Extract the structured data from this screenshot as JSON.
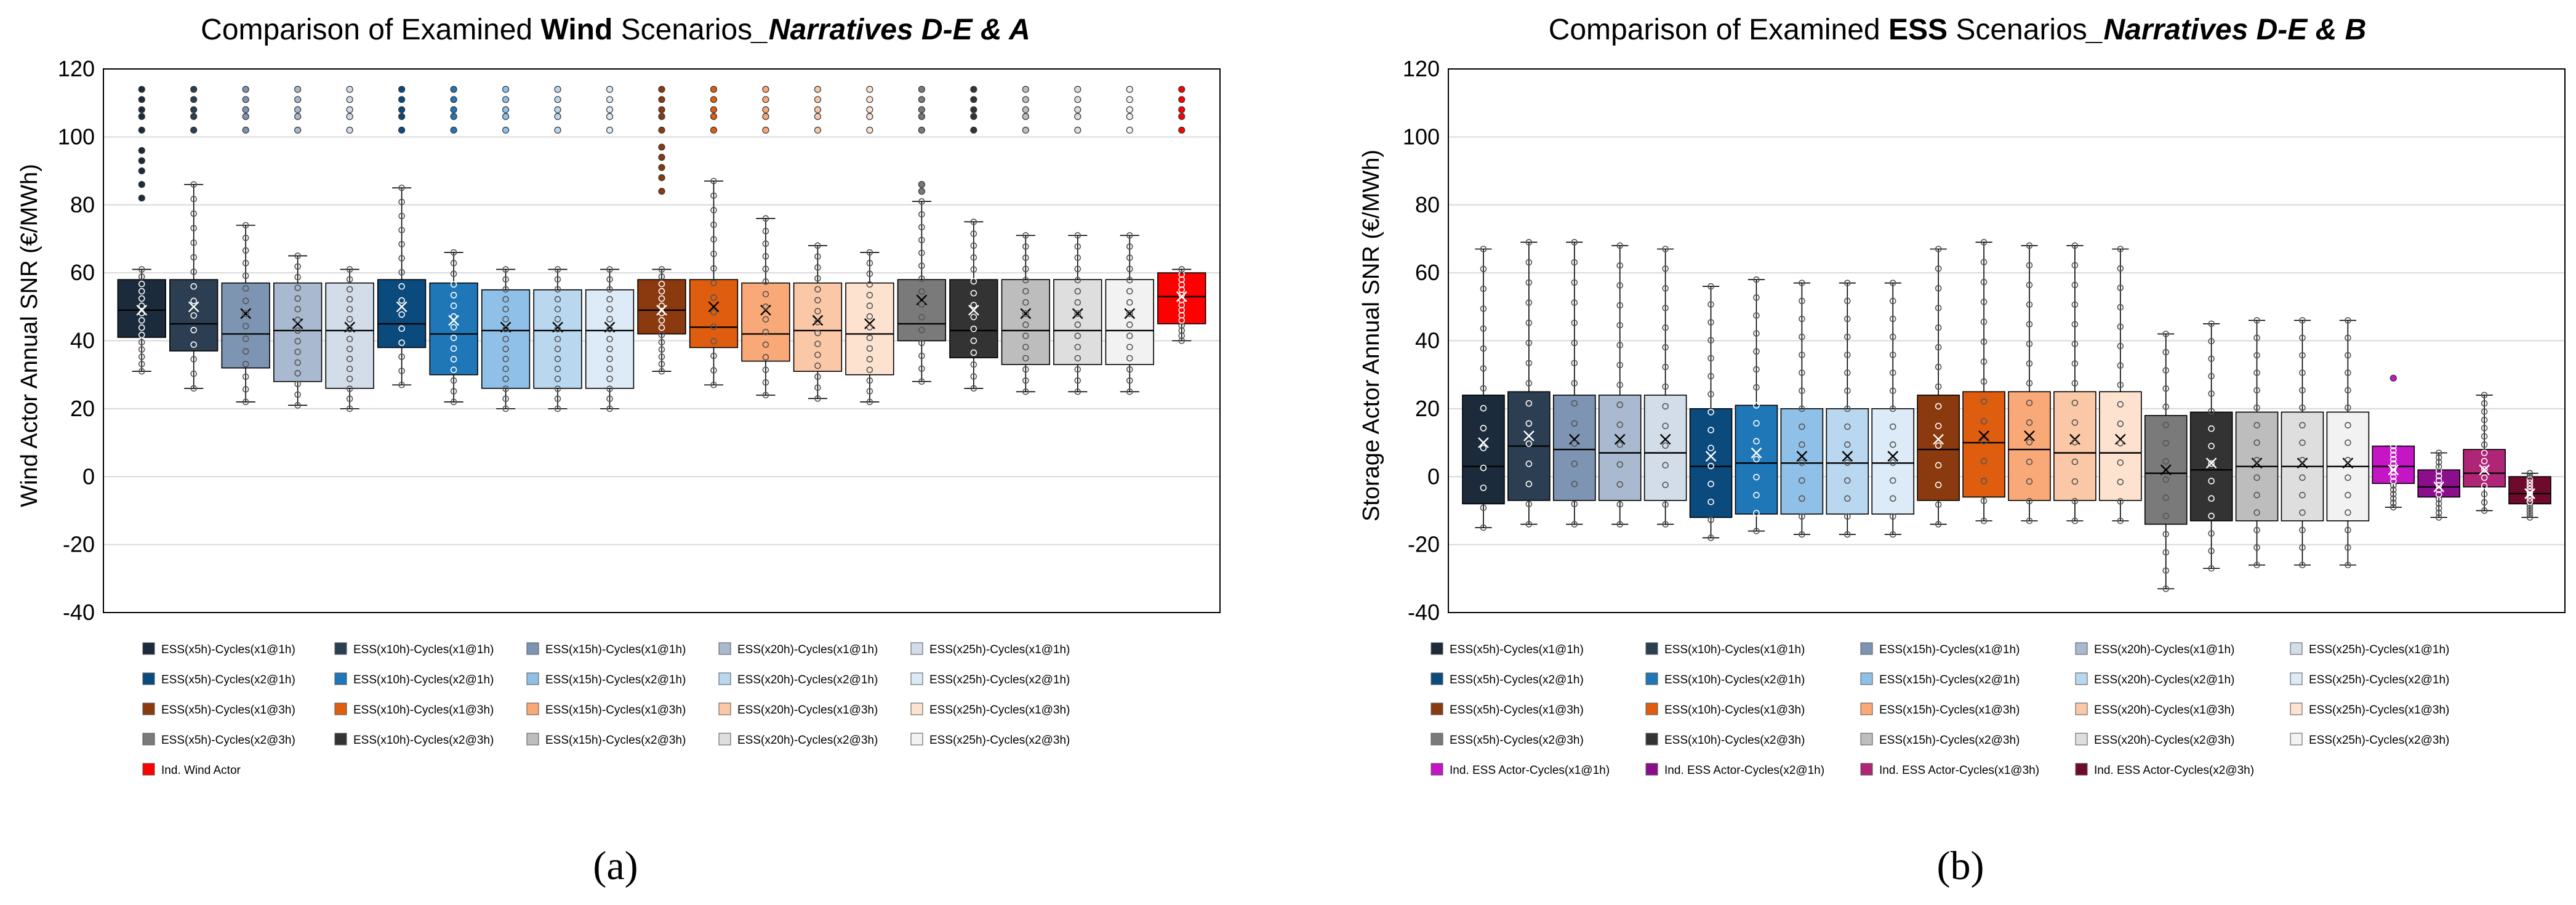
{
  "chart_data": [
    {
      "type": "box",
      "panel_label": "(a)",
      "title": {
        "prefix": "Comparison of Examined ",
        "bold": "Wind",
        "middle": " Scenarios",
        "italic_bold": "_Narratives D-E & A"
      },
      "ylabel": "Wind Actor Annual  SNR (€/MWh)",
      "xlabel": "",
      "ylim": [
        -40,
        120
      ],
      "yticks": [
        -40,
        -20,
        0,
        20,
        40,
        60,
        80,
        100,
        120
      ],
      "grid": true,
      "legend_columns": 5,
      "series": [
        {
          "name": "ESS(x5h)-Cycles(x1@1h)",
          "color": "#1c2b3b",
          "min": 31,
          "q1": 41,
          "median": 49,
          "q3": 58,
          "max": 61,
          "mean": 49,
          "outliers": [
            82,
            86,
            90,
            93,
            96,
            102,
            106,
            108,
            111,
            114
          ]
        },
        {
          "name": "ESS(x10h)-Cycles(x1@1h)",
          "color": "#2c3e52",
          "min": 26,
          "q1": 37,
          "median": 45,
          "q3": 58,
          "max": 86,
          "mean": 50,
          "outliers": [
            102,
            106,
            108,
            111,
            114
          ]
        },
        {
          "name": "ESS(x15h)-Cycles(x1@1h)",
          "color": "#7d95b3",
          "min": 22,
          "q1": 32,
          "median": 42,
          "q3": 57,
          "max": 74,
          "mean": 48,
          "outliers": [
            102,
            106,
            108,
            111,
            114
          ]
        },
        {
          "name": "ESS(x20h)-Cycles(x1@1h)",
          "color": "#a9b9cf",
          "min": 21,
          "q1": 28,
          "median": 43,
          "q3": 57,
          "max": 65,
          "mean": 45,
          "outliers": [
            102,
            106,
            108,
            111,
            114
          ]
        },
        {
          "name": "ESS(x25h)-Cycles(x1@1h)",
          "color": "#d3dde9",
          "min": 20,
          "q1": 26,
          "median": 43,
          "q3": 57,
          "max": 61,
          "mean": 44,
          "outliers": [
            102,
            106,
            108,
            111,
            114
          ]
        },
        {
          "name": "ESS(x5h)-Cycles(x2@1h)",
          "color": "#0b4a7d",
          "min": 27,
          "q1": 38,
          "median": 45,
          "q3": 58,
          "max": 85,
          "mean": 50,
          "outliers": [
            102,
            106,
            108,
            111,
            114
          ]
        },
        {
          "name": "ESS(x10h)-Cycles(x2@1h)",
          "color": "#1f77b8",
          "min": 22,
          "q1": 30,
          "median": 42,
          "q3": 57,
          "max": 66,
          "mean": 46,
          "outliers": [
            102,
            106,
            108,
            111,
            114
          ]
        },
        {
          "name": "ESS(x15h)-Cycles(x2@1h)",
          "color": "#8fc0e8",
          "min": 20,
          "q1": 26,
          "median": 43,
          "q3": 55,
          "max": 61,
          "mean": 44,
          "outliers": [
            102,
            106,
            108,
            111,
            114
          ]
        },
        {
          "name": "ESS(x20h)-Cycles(x2@1h)",
          "color": "#b9d8f0",
          "min": 20,
          "q1": 26,
          "median": 43,
          "q3": 55,
          "max": 61,
          "mean": 44,
          "outliers": [
            102,
            106,
            108,
            111,
            114
          ]
        },
        {
          "name": "ESS(x25h)-Cycles(x2@1h)",
          "color": "#dcebf7",
          "min": 20,
          "q1": 26,
          "median": 43,
          "q3": 55,
          "max": 61,
          "mean": 44,
          "outliers": [
            102,
            106,
            108,
            111,
            114
          ]
        },
        {
          "name": "ESS(x5h)-Cycles(x1@3h)",
          "color": "#8a3a0e",
          "min": 31,
          "q1": 42,
          "median": 49,
          "q3": 58,
          "max": 61,
          "mean": 49,
          "outliers": [
            84,
            88,
            91,
            94,
            97,
            102,
            106,
            108,
            111,
            114
          ]
        },
        {
          "name": "ESS(x10h)-Cycles(x1@3h)",
          "color": "#df5d0e",
          "min": 27,
          "q1": 38,
          "median": 44,
          "q3": 58,
          "max": 87,
          "mean": 50,
          "outliers": [
            102,
            106,
            108,
            111,
            114
          ]
        },
        {
          "name": "ESS(x15h)-Cycles(x1@3h)",
          "color": "#f9a878",
          "min": 24,
          "q1": 34,
          "median": 42,
          "q3": 57,
          "max": 76,
          "mean": 49,
          "outliers": [
            102,
            106,
            108,
            111,
            114
          ]
        },
        {
          "name": "ESS(x20h)-Cycles(x1@3h)",
          "color": "#fac8a6",
          "min": 23,
          "q1": 31,
          "median": 43,
          "q3": 57,
          "max": 68,
          "mean": 46,
          "outliers": [
            102,
            106,
            108,
            111,
            114
          ]
        },
        {
          "name": "ESS(x25h)-Cycles(x1@3h)",
          "color": "#fde2cf",
          "min": 22,
          "q1": 30,
          "median": 42,
          "q3": 57,
          "max": 66,
          "mean": 45,
          "outliers": [
            102,
            106,
            108,
            111,
            114
          ]
        },
        {
          "name": "ESS(x5h)-Cycles(x2@3h)",
          "color": "#7a7a7a",
          "min": 28,
          "q1": 40,
          "median": 45,
          "q3": 58,
          "max": 81,
          "mean": 52,
          "outliers": [
            84,
            86,
            102,
            106,
            108,
            111,
            114
          ]
        },
        {
          "name": "ESS(x10h)-Cycles(x2@3h)",
          "color": "#333333",
          "min": 26,
          "q1": 35,
          "median": 43,
          "q3": 58,
          "max": 75,
          "mean": 49,
          "outliers": [
            102,
            106,
            108,
            111,
            114
          ]
        },
        {
          "name": "ESS(x15h)-Cycles(x2@3h)",
          "color": "#bdbdbd",
          "min": 25,
          "q1": 33,
          "median": 43,
          "q3": 58,
          "max": 71,
          "mean": 48,
          "outliers": [
            102,
            106,
            108,
            111,
            114
          ]
        },
        {
          "name": "ESS(x20h)-Cycles(x2@3h)",
          "color": "#dedede",
          "min": 25,
          "q1": 33,
          "median": 43,
          "q3": 58,
          "max": 71,
          "mean": 48,
          "outliers": [
            102,
            106,
            108,
            111,
            114
          ]
        },
        {
          "name": "ESS(x25h)-Cycles(x2@3h)",
          "color": "#f2f2f2",
          "min": 25,
          "q1": 33,
          "median": 43,
          "q3": 58,
          "max": 71,
          "mean": 48,
          "outliers": [
            102,
            106,
            108,
            111,
            114
          ]
        },
        {
          "name": "Ind. Wind Actor",
          "color": "#ff0000",
          "min": 40,
          "q1": 45,
          "median": 53,
          "q3": 60,
          "max": 61,
          "mean": 53,
          "outliers": [
            102,
            106,
            108,
            111,
            114
          ]
        }
      ]
    },
    {
      "type": "box",
      "panel_label": "(b)",
      "title": {
        "prefix": "Comparison of Examined ",
        "bold": "ESS",
        "middle": " Scenarios",
        "italic_bold": "_Narratives D-E & B"
      },
      "ylabel": "Storage  Actor Annual  SNR (€/MWh)",
      "xlabel": "",
      "ylim": [
        -40,
        120
      ],
      "yticks": [
        -40,
        -20,
        0,
        20,
        40,
        60,
        80,
        100,
        120
      ],
      "grid": true,
      "legend_columns": 5,
      "series": [
        {
          "name": "ESS(x5h)-Cycles(x1@1h)",
          "color": "#1c2b3b",
          "min": -15,
          "q1": -8,
          "median": 3,
          "q3": 24,
          "max": 67,
          "mean": 10,
          "outliers": []
        },
        {
          "name": "ESS(x10h)-Cycles(x1@1h)",
          "color": "#2c3e52",
          "min": -14,
          "q1": -7,
          "median": 9,
          "q3": 25,
          "max": 69,
          "mean": 12,
          "outliers": []
        },
        {
          "name": "ESS(x15h)-Cycles(x1@1h)",
          "color": "#7d95b3",
          "min": -14,
          "q1": -7,
          "median": 8,
          "q3": 24,
          "max": 69,
          "mean": 11,
          "outliers": []
        },
        {
          "name": "ESS(x20h)-Cycles(x1@1h)",
          "color": "#a9b9cf",
          "min": -14,
          "q1": -7,
          "median": 7,
          "q3": 24,
          "max": 68,
          "mean": 11,
          "outliers": []
        },
        {
          "name": "ESS(x25h)-Cycles(x1@1h)",
          "color": "#d3dde9",
          "min": -14,
          "q1": -7,
          "median": 7,
          "q3": 24,
          "max": 67,
          "mean": 11,
          "outliers": []
        },
        {
          "name": "ESS(x5h)-Cycles(x2@1h)",
          "color": "#0b4a7d",
          "min": -18,
          "q1": -12,
          "median": 3,
          "q3": 20,
          "max": 56,
          "mean": 6,
          "outliers": []
        },
        {
          "name": "ESS(x10h)-Cycles(x2@1h)",
          "color": "#1f77b8",
          "min": -16,
          "q1": -11,
          "median": 4,
          "q3": 21,
          "max": 58,
          "mean": 7,
          "outliers": []
        },
        {
          "name": "ESS(x15h)-Cycles(x2@1h)",
          "color": "#8fc0e8",
          "min": -17,
          "q1": -11,
          "median": 4,
          "q3": 20,
          "max": 57,
          "mean": 6,
          "outliers": []
        },
        {
          "name": "ESS(x20h)-Cycles(x2@1h)",
          "color": "#b9d8f0",
          "min": -17,
          "q1": -11,
          "median": 4,
          "q3": 20,
          "max": 57,
          "mean": 6,
          "outliers": []
        },
        {
          "name": "ESS(x25h)-Cycles(x2@1h)",
          "color": "#dcebf7",
          "min": -17,
          "q1": -11,
          "median": 4,
          "q3": 20,
          "max": 57,
          "mean": 6,
          "outliers": []
        },
        {
          "name": "ESS(x5h)-Cycles(x1@3h)",
          "color": "#8a3a0e",
          "min": -14,
          "q1": -7,
          "median": 8,
          "q3": 24,
          "max": 67,
          "mean": 11,
          "outliers": []
        },
        {
          "name": "ESS(x10h)-Cycles(x1@3h)",
          "color": "#df5d0e",
          "min": -13,
          "q1": -6,
          "median": 10,
          "q3": 25,
          "max": 69,
          "mean": 12,
          "outliers": []
        },
        {
          "name": "ESS(x15h)-Cycles(x1@3h)",
          "color": "#f9a878",
          "min": -13,
          "q1": -7,
          "median": 8,
          "q3": 25,
          "max": 68,
          "mean": 12,
          "outliers": []
        },
        {
          "name": "ESS(x20h)-Cycles(x1@3h)",
          "color": "#fac8a6",
          "min": -13,
          "q1": -7,
          "median": 7,
          "q3": 25,
          "max": 68,
          "mean": 11,
          "outliers": []
        },
        {
          "name": "ESS(x25h)-Cycles(x1@3h)",
          "color": "#fde2cf",
          "min": -13,
          "q1": -7,
          "median": 7,
          "q3": 25,
          "max": 67,
          "mean": 11,
          "outliers": []
        },
        {
          "name": "ESS(x5h)-Cycles(x2@3h)",
          "color": "#7a7a7a",
          "min": -33,
          "q1": -14,
          "median": 1,
          "q3": 18,
          "max": 42,
          "mean": 2,
          "outliers": []
        },
        {
          "name": "ESS(x10h)-Cycles(x2@3h)",
          "color": "#333333",
          "min": -27,
          "q1": -13,
          "median": 2,
          "q3": 19,
          "max": 45,
          "mean": 4,
          "outliers": []
        },
        {
          "name": "ESS(x15h)-Cycles(x2@3h)",
          "color": "#bdbdbd",
          "min": -26,
          "q1": -13,
          "median": 3,
          "q3": 19,
          "max": 46,
          "mean": 4,
          "outliers": []
        },
        {
          "name": "ESS(x20h)-Cycles(x2@3h)",
          "color": "#dedede",
          "min": -26,
          "q1": -13,
          "median": 3,
          "q3": 19,
          "max": 46,
          "mean": 4,
          "outliers": []
        },
        {
          "name": "ESS(x25h)-Cycles(x2@3h)",
          "color": "#f2f2f2",
          "min": -26,
          "q1": -13,
          "median": 3,
          "q3": 19,
          "max": 46,
          "mean": 4,
          "outliers": []
        },
        {
          "name": "Ind. ESS Actor-Cycles(x1@1h)",
          "color": "#c416c4",
          "min": -9,
          "q1": -2,
          "median": 3,
          "q3": 9,
          "max": 9,
          "mean": 2,
          "outliers": [
            29
          ]
        },
        {
          "name": "Ind. ESS Actor-Cycles(x2@1h)",
          "color": "#8b0f8b",
          "min": -12,
          "q1": -6,
          "median": -3,
          "q3": 2,
          "max": 7,
          "mean": -3,
          "outliers": []
        },
        {
          "name": "Ind. ESS Actor-Cycles(x1@3h)",
          "color": "#b02677",
          "min": -10,
          "q1": -3,
          "median": 1,
          "q3": 8,
          "max": 24,
          "mean": 2,
          "outliers": []
        },
        {
          "name": "Ind. ESS Actor-Cycles(x2@3h)",
          "color": "#6e0b2d",
          "min": -12,
          "q1": -8,
          "median": -5,
          "q3": 0,
          "max": 1,
          "mean": -5,
          "outliers": []
        }
      ]
    }
  ]
}
